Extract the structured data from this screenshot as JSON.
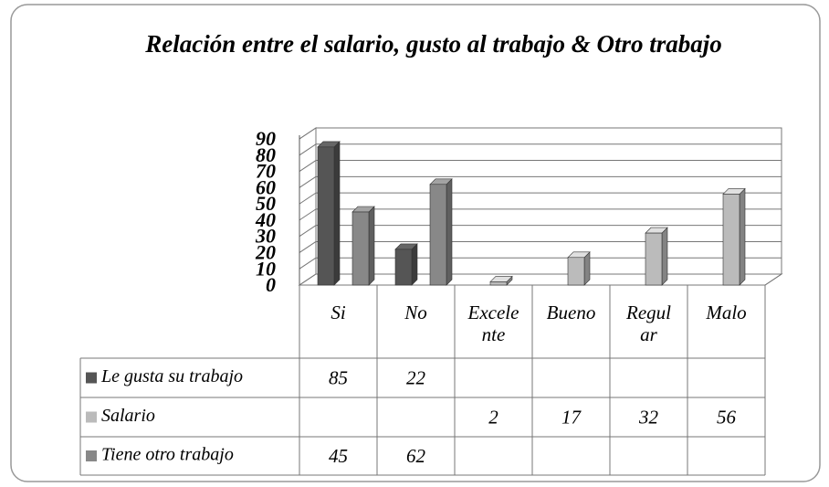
{
  "chart_data": {
    "type": "bar3d",
    "title": "Relación entre el salario, gusto al trabajo & Otro trabajo",
    "categories": [
      "Si",
      "No",
      "Excelente",
      "Bueno",
      "Regular",
      "Malo"
    ],
    "series": [
      {
        "name": "Le gusta su trabajo",
        "color": "#555555",
        "values": [
          85,
          22,
          null,
          null,
          null,
          null
        ]
      },
      {
        "name": "Salario",
        "color": "#bbbbbb",
        "values": [
          null,
          null,
          2,
          17,
          32,
          56
        ]
      },
      {
        "name": "Tiene otro trabajo",
        "color": "#888888",
        "values": [
          45,
          62,
          null,
          null,
          null,
          null
        ]
      }
    ],
    "ylim": [
      0,
      90
    ],
    "yticks": [
      0,
      10,
      20,
      30,
      40,
      50,
      60,
      70,
      80,
      90
    ],
    "grid": true
  }
}
